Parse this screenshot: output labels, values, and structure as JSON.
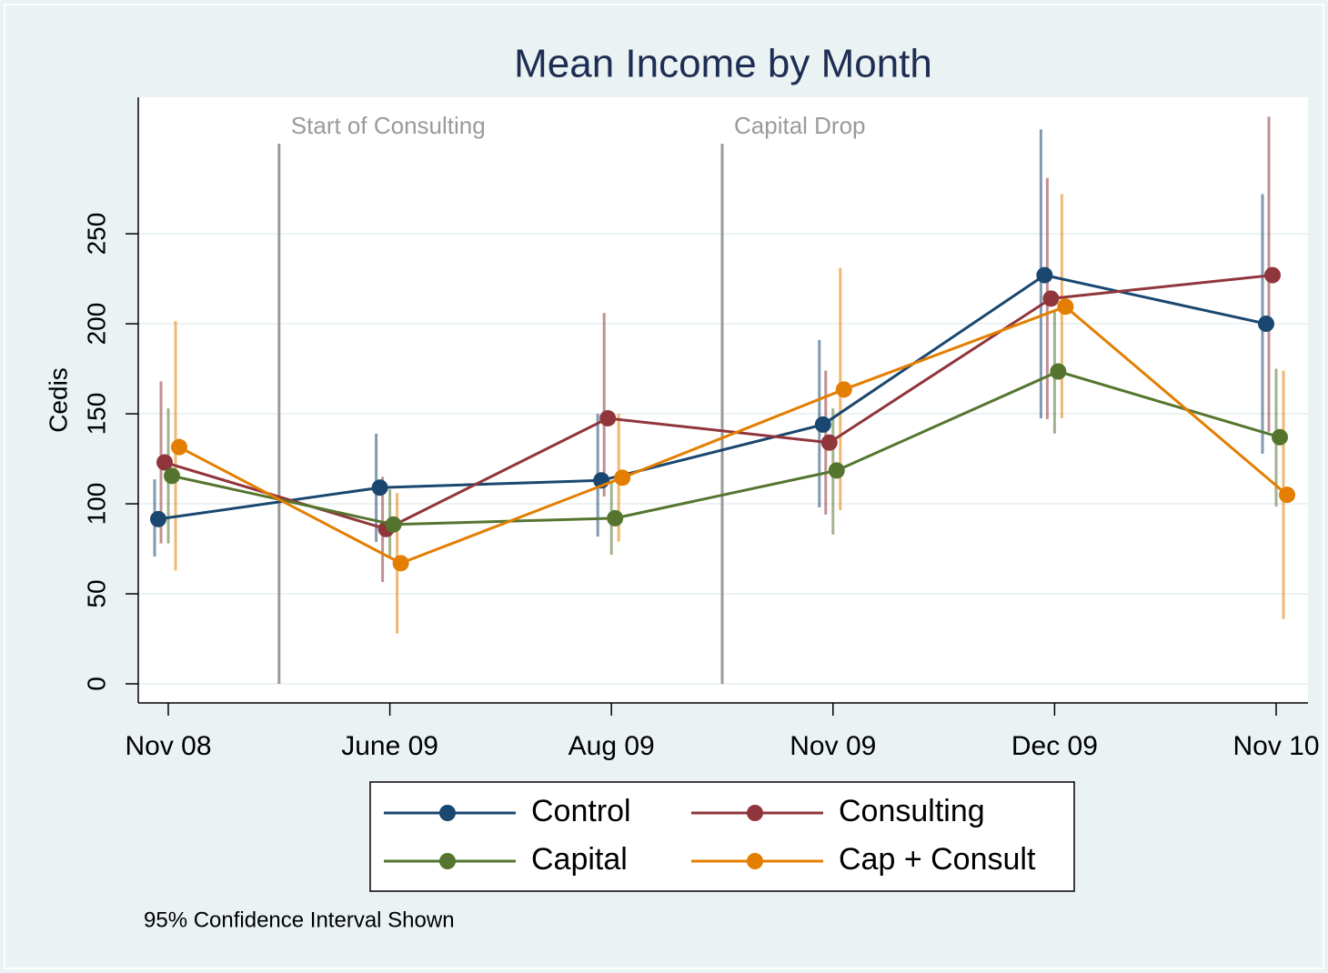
{
  "chart_data": {
    "type": "line",
    "title": "Mean Income by Month",
    "y_label": "Cedis",
    "note": "95% Confidence Interval Shown",
    "categories": [
      "Nov 08",
      "June 09",
      "Aug 09",
      "Nov 09",
      "Dec 09",
      "Nov 10"
    ],
    "ylim": [
      -10.6,
      325.8
    ],
    "yticks": [
      0,
      50,
      100,
      150,
      200,
      250
    ],
    "grid": true,
    "annotations": [
      {
        "text": "Start of Consulting",
        "x": 0.5,
        "y": 300
      },
      {
        "text": "Capital Drop",
        "x": 2.5,
        "y": 300
      }
    ],
    "series": [
      {
        "name": "Control",
        "color": "#1a476f",
        "values": [
          91.5,
          109,
          113,
          144,
          227,
          200
        ],
        "ci_low": [
          70.7,
          78.8,
          81.8,
          98,
          147.5,
          127.8
        ],
        "ci_high": [
          113.6,
          139,
          150,
          191,
          308,
          272
        ]
      },
      {
        "name": "Consulting",
        "color": "#90353b",
        "values": [
          123,
          86,
          147.5,
          134,
          214,
          227
        ],
        "ci_low": [
          78,
          56.6,
          104,
          94,
          147,
          140
        ],
        "ci_high": [
          168,
          115,
          206,
          174,
          281,
          315
        ]
      },
      {
        "name": "Capital",
        "color": "#55752f",
        "values": [
          115.5,
          88.5,
          92,
          118.5,
          173.5,
          137
        ],
        "ci_low": [
          78,
          70,
          71.7,
          83,
          139,
          98.5
        ],
        "ci_high": [
          153,
          108,
          112,
          153,
          208,
          175
        ]
      },
      {
        "name": "Cap + Consult",
        "color": "#e37e00",
        "values": [
          131.5,
          67,
          114.5,
          163.5,
          209.5,
          105
        ],
        "ci_low": [
          63,
          28,
          79,
          96.5,
          147.5,
          36
        ],
        "ci_high": [
          201.5,
          106,
          150,
          231,
          272,
          174
        ]
      }
    ]
  }
}
